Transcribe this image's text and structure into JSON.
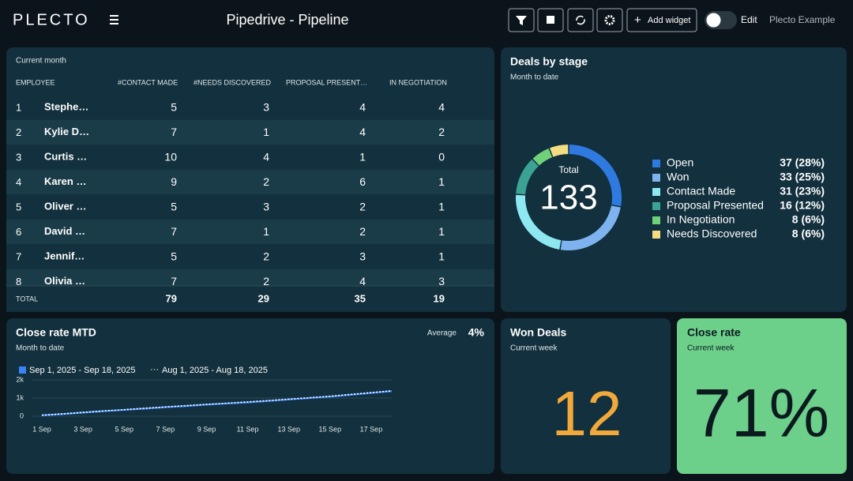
{
  "header": {
    "logo": "PLECTO",
    "title": "Pipedrive - Pipeline",
    "add_widget": "Add widget",
    "edit": "Edit",
    "account": "Plecto Example"
  },
  "table": {
    "subtitle": "Current month",
    "columns": [
      "EMPLOYEE",
      "#CONTACT MADE",
      "#NEEDS DISCOVERED",
      "PROPOSAL PRESENT…",
      "IN NEGOTIATION"
    ],
    "rows": [
      [
        "1",
        "Stephe…",
        5,
        3,
        4,
        4
      ],
      [
        "2",
        "Kylie D…",
        7,
        1,
        4,
        2
      ],
      [
        "3",
        "Curtis …",
        10,
        4,
        1,
        0
      ],
      [
        "4",
        "Karen …",
        9,
        2,
        6,
        1
      ],
      [
        "5",
        "Oliver …",
        5,
        3,
        2,
        1
      ],
      [
        "6",
        "David …",
        7,
        1,
        2,
        1
      ],
      [
        "7",
        "Jennif…",
        5,
        2,
        3,
        1
      ],
      [
        "8",
        "Olivia …",
        7,
        2,
        4,
        3
      ]
    ],
    "total": [
      "TOTAL",
      79,
      29,
      35,
      19
    ]
  },
  "donut": {
    "title": "Deals by stage",
    "subtitle": "Month to date",
    "total_label": "Total",
    "total": 133,
    "items": [
      {
        "name": "Open",
        "color": "#2f7ae0",
        "value": 37,
        "value_label": "37 (28%)"
      },
      {
        "name": "Won",
        "color": "#7fb3ef",
        "value": 33,
        "value_label": "33 (25%)"
      },
      {
        "name": "Contact Made",
        "color": "#8ee8f0",
        "value": 31,
        "value_label": "31 (23%)"
      },
      {
        "name": "Proposal Presented",
        "color": "#3aa394",
        "value": 16,
        "value_label": "16 (12%)"
      },
      {
        "name": "In Negotiation",
        "color": "#6fd17a",
        "value": 8,
        "value_label": "8 (6%)"
      },
      {
        "name": "Needs Discovered",
        "color": "#f3dc82",
        "value": 8,
        "value_label": "8 (6%)"
      }
    ]
  },
  "line": {
    "title": "Close rate MTD",
    "subtitle": "Month to date",
    "average_label": "Average",
    "average": "4%",
    "chart_data": {
      "type": "line",
      "categories": [
        "1 Sep",
        null,
        "3 Sep",
        null,
        "5 Sep",
        null,
        "7 Sep",
        null,
        "9 Sep",
        null,
        "11 Sep",
        null,
        "13 Sep",
        null,
        "15 Sep",
        null,
        "17 Sep",
        null
      ],
      "ylim": [
        0,
        2000
      ],
      "yticks": [
        0,
        {
          "value": 1000,
          "label": "1k"
        },
        {
          "value": 2000,
          "label": "2k"
        }
      ],
      "series": [
        {
          "name": "Sep 1, 2025 - Sep 18, 2025",
          "color": "#3b82f6",
          "values": [
            50,
            120,
            200,
            280,
            350,
            420,
            500,
            560,
            640,
            700,
            760,
            840,
            920,
            1000,
            1080,
            1180,
            1280,
            1380
          ]
        },
        {
          "name": "Aug 1, 2025 - Aug 18, 2025",
          "color": "#ffffff",
          "values": [
            60,
            130,
            210,
            290,
            360,
            440,
            510,
            580,
            650,
            720,
            790,
            860,
            940,
            1020,
            1100,
            1200,
            1300,
            1400
          ]
        }
      ]
    }
  },
  "won": {
    "title": "Won Deals",
    "subtitle": "Current week",
    "value": 12
  },
  "close": {
    "title": "Close rate",
    "subtitle": "Current week",
    "value": "71%"
  }
}
